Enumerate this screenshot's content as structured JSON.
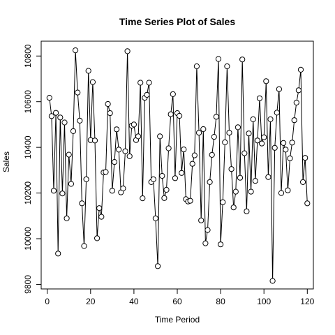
{
  "chart_data": {
    "type": "line",
    "title": "Time Series Plot of Sales",
    "xlabel": "Time Period",
    "ylabel": "Sales",
    "xlim": [
      -2.8,
      122.8
    ],
    "ylim": [
      9780,
      10865
    ],
    "xticks": [
      0,
      20,
      40,
      60,
      80,
      100,
      120
    ],
    "yticks": [
      9800,
      10000,
      10200,
      10400,
      10600,
      10800
    ],
    "grid": false,
    "legend": "none",
    "markers": "open-circle",
    "series": [
      {
        "x": [
          1,
          2,
          3,
          4,
          5,
          6,
          7,
          8,
          9,
          10,
          11,
          12,
          13,
          14,
          15,
          16,
          17,
          18,
          19,
          20,
          21,
          22,
          23,
          24,
          25,
          26,
          27,
          28,
          29,
          30,
          31,
          32,
          33,
          34,
          35,
          36,
          37,
          38,
          39,
          40,
          41,
          42,
          43,
          44,
          45,
          46,
          47,
          48,
          49,
          50,
          51,
          52,
          53,
          54,
          55,
          56,
          57,
          58,
          59,
          60,
          61,
          62,
          63,
          64,
          65,
          66,
          67,
          68,
          69,
          70,
          71,
          72,
          73,
          74,
          75,
          76,
          77,
          78,
          79,
          80,
          81,
          82,
          83,
          84,
          85,
          86,
          87,
          88,
          89,
          90,
          91,
          92,
          93,
          94,
          95,
          96,
          97,
          98,
          99,
          100,
          101,
          102,
          103,
          104,
          105,
          106,
          107,
          108,
          109,
          110,
          111,
          112,
          113,
          114,
          115,
          116,
          117,
          118,
          119,
          120
        ],
        "values": [
          10617,
          10537,
          10210,
          10551,
          9935,
          10531,
          10198,
          10509,
          10089,
          10368,
          10240,
          10471,
          10825,
          10640,
          10517,
          10155,
          9968,
          10260,
          10735,
          10432,
          10686,
          10430,
          10002,
          10134,
          10096,
          10290,
          10292,
          10590,
          10550,
          10210,
          10336,
          10479,
          10390,
          10203,
          10220,
          10383,
          10821,
          10361,
          10495,
          10500,
          10432,
          10448,
          10683,
          10177,
          10617,
          10630,
          10683,
          10248,
          10260,
          10089,
          9880,
          10448,
          10275,
          10178,
          10214,
          10396,
          10545,
          10633,
          10265,
          10550,
          10538,
          10288,
          10391,
          10173,
          10163,
          10166,
          10328,
          10365,
          10755,
          10464,
          10080,
          10480,
          9980,
          10038,
          10248,
          10367,
          10446,
          10534,
          10787,
          9975,
          10160,
          10422,
          10755,
          10464,
          10305,
          10137,
          10206,
          10488,
          10267,
          10785,
          10374,
          10120,
          10461,
          10206,
          10523,
          10253,
          10430,
          10615,
          10417,
          10444,
          10690,
          10270,
          10523,
          9815,
          10398,
          10552,
          10655,
          10200,
          10419,
          10390,
          10212,
          10352,
          10421,
          10519,
          10596,
          10650,
          10740,
          10248,
          10354,
          10155
        ]
      }
    ]
  }
}
